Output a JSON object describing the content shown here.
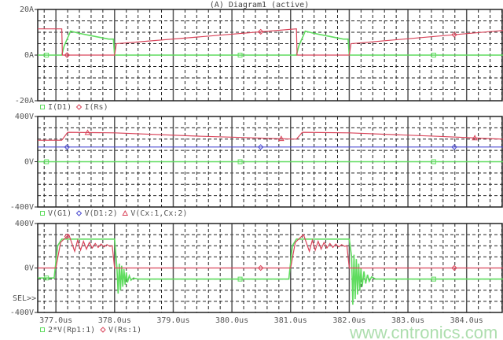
{
  "title": "(A) Diagram1 (active)",
  "sel_marker": "SEL>>",
  "watermark": "www.cntronics.com",
  "colors": {
    "green": "#5fdc5f",
    "red": "#d9445a",
    "blue": "#4a4ad0",
    "grid": "#222222"
  },
  "chart_data": [
    {
      "type": "line",
      "ylim": [
        -20,
        20
      ],
      "xlim": [
        376.69,
        384.62
      ],
      "yticks": [
        "20A",
        "0A",
        "-20A"
      ],
      "grid": true,
      "legend": "bottom-left",
      "series": [
        {
          "name": "I(D1)",
          "color": "green",
          "marker": "square",
          "points": [
            [
              376.69,
              0
            ],
            [
              377.1,
              0
            ],
            [
              377.14,
              4
            ],
            [
              377.25,
              10.5
            ],
            [
              377.4,
              9.5
            ],
            [
              377.6,
              8.5
            ],
            [
              377.9,
              7
            ],
            [
              377.98,
              7
            ],
            [
              378.0,
              0
            ],
            [
              381.1,
              0
            ],
            [
              381.14,
              4
            ],
            [
              381.25,
              10.5
            ],
            [
              381.4,
              9.5
            ],
            [
              381.6,
              8.5
            ],
            [
              381.9,
              7
            ],
            [
              381.98,
              7
            ],
            [
              382.0,
              0
            ],
            [
              384.62,
              0
            ]
          ]
        },
        {
          "name": "I(Rs)",
          "color": "red",
          "marker": "diamond",
          "points": [
            [
              376.69,
              11.5
            ],
            [
              377.1,
              11.5
            ],
            [
              377.11,
              0
            ],
            [
              378.0,
              0
            ],
            [
              378.03,
              5
            ],
            [
              381.1,
              11.5
            ],
            [
              381.11,
              0
            ],
            [
              382.0,
              0
            ],
            [
              382.03,
              5
            ],
            [
              384.62,
              10.8
            ]
          ]
        }
      ]
    },
    {
      "type": "line",
      "ylim": [
        -400,
        400
      ],
      "xlim": [
        376.69,
        384.62
      ],
      "yticks": [
        "400V",
        "0V",
        "-400V"
      ],
      "grid": true,
      "legend": "bottom-left",
      "series": [
        {
          "name": "V(G1)",
          "color": "green",
          "marker": "square",
          "points": [
            [
              376.69,
              0
            ],
            [
              384.62,
              0
            ]
          ]
        },
        {
          "name": "V(D1:2)",
          "color": "blue",
          "marker": "diamond",
          "points": [
            [
              376.69,
              130
            ],
            [
              384.62,
              130
            ]
          ]
        },
        {
          "name": "V(Cx:1,Cx:2)",
          "color": "red",
          "marker": "triangle",
          "points": [
            [
              376.69,
              190
            ],
            [
              377.1,
              190
            ],
            [
              377.2,
              260
            ],
            [
              378.0,
              255
            ],
            [
              379.5,
              225
            ],
            [
              381.1,
              200
            ],
            [
              381.2,
              260
            ],
            [
              382.0,
              255
            ],
            [
              383.5,
              225
            ],
            [
              384.62,
              200
            ]
          ]
        }
      ]
    },
    {
      "type": "line",
      "ylim": [
        -400,
        400
      ],
      "xlim": [
        376.69,
        384.62
      ],
      "yticks": [
        "400V",
        "0V",
        "-400V"
      ],
      "xticks": [
        "377.0us",
        "378.0us",
        "379.0us",
        "380.0us",
        "381.0us",
        "382.0us",
        "383.0us",
        "384.0us"
      ],
      "xtick_values": [
        377,
        378,
        379,
        380,
        381,
        382,
        383,
        384
      ],
      "grid": true,
      "legend": "bottom-left",
      "series": [
        {
          "name": "2*V(Rp1:1)",
          "color": "green",
          "marker": "square",
          "points": [
            [
              376.69,
              -90
            ],
            [
              376.97,
              -90
            ],
            [
              377.03,
              200
            ],
            [
              377.1,
              260
            ],
            [
              378.0,
              260
            ],
            [
              378.04,
              0
            ],
            [
              378.06,
              -230
            ],
            [
              378.08,
              40
            ],
            [
              378.1,
              -200
            ],
            [
              378.12,
              20
            ],
            [
              378.14,
              -170
            ],
            [
              378.16,
              -10
            ],
            [
              378.18,
              -150
            ],
            [
              378.2,
              -40
            ],
            [
              378.22,
              -130
            ],
            [
              378.25,
              -70
            ],
            [
              378.28,
              -110
            ],
            [
              378.32,
              -90
            ],
            [
              378.4,
              -100
            ],
            [
              380.97,
              -100
            ],
            [
              381.03,
              200
            ],
            [
              381.1,
              260
            ],
            [
              382.0,
              260
            ],
            [
              382.04,
              100
            ],
            [
              382.06,
              -330
            ],
            [
              382.08,
              120
            ],
            [
              382.1,
              -280
            ],
            [
              382.12,
              80
            ],
            [
              382.14,
              -240
            ],
            [
              382.16,
              40
            ],
            [
              382.18,
              -200
            ],
            [
              382.2,
              0
            ],
            [
              382.22,
              -170
            ],
            [
              382.25,
              -30
            ],
            [
              382.28,
              -140
            ],
            [
              382.31,
              -60
            ],
            [
              382.34,
              -120
            ],
            [
              382.38,
              -80
            ],
            [
              382.45,
              -100
            ],
            [
              384.62,
              -100
            ]
          ]
        },
        {
          "name": "V(Rs:1)",
          "color": "red",
          "marker": "circle",
          "points": [
            [
              376.69,
              0
            ],
            [
              377.0,
              0
            ],
            [
              377.08,
              230
            ],
            [
              377.22,
              300
            ],
            [
              377.32,
              150
            ],
            [
              377.37,
              250
            ],
            [
              377.42,
              160
            ],
            [
              377.47,
              240
            ],
            [
              377.52,
              170
            ],
            [
              377.57,
              230
            ],
            [
              377.62,
              180
            ],
            [
              377.67,
              220
            ],
            [
              377.72,
              185
            ],
            [
              377.77,
              215
            ],
            [
              377.82,
              190
            ],
            [
              377.87,
              210
            ],
            [
              377.92,
              195
            ],
            [
              377.96,
              200
            ],
            [
              378.0,
              0
            ],
            [
              381.0,
              0
            ],
            [
              381.08,
              230
            ],
            [
              381.22,
              300
            ],
            [
              381.32,
              150
            ],
            [
              381.37,
              250
            ],
            [
              381.42,
              160
            ],
            [
              381.47,
              240
            ],
            [
              381.52,
              170
            ],
            [
              381.57,
              230
            ],
            [
              381.62,
              180
            ],
            [
              381.67,
              220
            ],
            [
              381.72,
              185
            ],
            [
              381.77,
              215
            ],
            [
              381.82,
              190
            ],
            [
              381.87,
              210
            ],
            [
              381.92,
              195
            ],
            [
              381.96,
              200
            ],
            [
              382.0,
              0
            ],
            [
              384.62,
              0
            ]
          ]
        }
      ]
    }
  ]
}
